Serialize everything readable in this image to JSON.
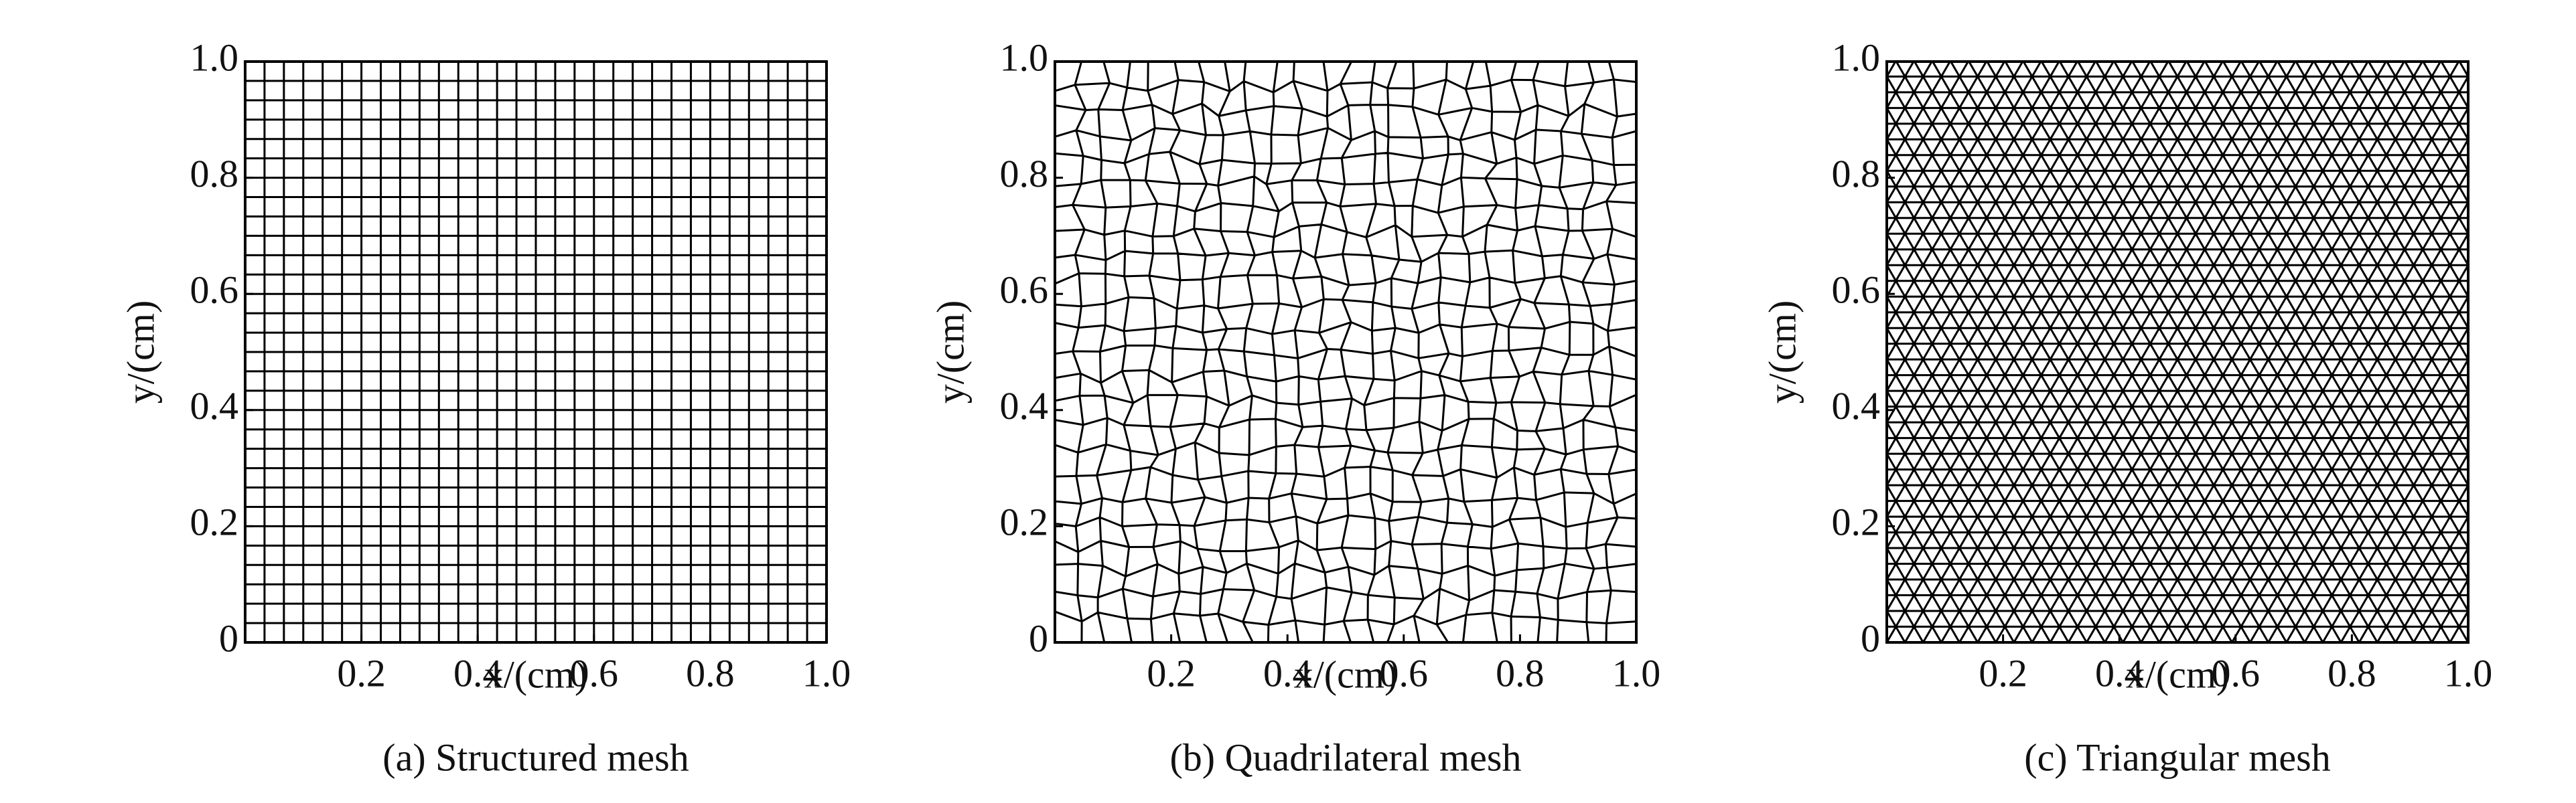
{
  "chart_data": [
    {
      "type": "grid",
      "caption": "(a) Structured mesh",
      "xlabel": "x/(cm)",
      "ylabel": "y/(cm)",
      "xlim": [
        0,
        1
      ],
      "ylim": [
        0,
        1
      ],
      "xticks": [
        0.2,
        0.4,
        0.6,
        0.8,
        {
          "value": 1,
          "label": "1.0"
        }
      ],
      "yticks": [
        0,
        0.2,
        0.4,
        0.6,
        0.8,
        {
          "value": 1,
          "label": "1.0"
        }
      ]
    },
    {
      "type": "quadmesh",
      "caption": "(b) Quadrilateral mesh",
      "xlabel": "x/(cm)",
      "ylabel": "y/(cm)",
      "xlim": [
        0,
        1
      ],
      "ylim": [
        0,
        1
      ],
      "xticks": [
        0.2,
        0.4,
        0.6,
        0.8,
        {
          "value": 1,
          "label": "1.0"
        }
      ],
      "yticks": [
        0,
        0.2,
        0.4,
        0.6,
        0.8,
        {
          "value": 1,
          "label": "1.0"
        }
      ]
    },
    {
      "type": "trimesh",
      "caption": "(c) Triangular mesh",
      "xlabel": "x/(cm)",
      "ylabel": "y/(cm)",
      "xlim": [
        0,
        1
      ],
      "ylim": [
        0,
        1
      ],
      "xticks": [
        0.2,
        0.4,
        0.6,
        0.8,
        {
          "value": 1,
          "label": "1.0"
        }
      ],
      "yticks": [
        0,
        0.2,
        0.4,
        0.6,
        0.8,
        {
          "value": 1,
          "label": "1.0"
        }
      ]
    }
  ]
}
